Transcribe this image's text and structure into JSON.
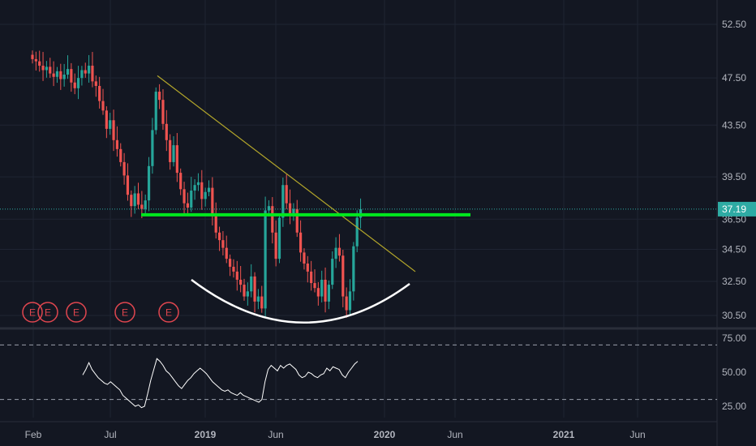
{
  "chart_data": {
    "type": "candlestick",
    "price_axis": {
      "ticks": [
        "52.50",
        "47.50",
        "43.50",
        "39.50",
        "36.50",
        "34.50",
        "32.50",
        "30.50"
      ],
      "tick_values": [
        52.5,
        47.5,
        43.5,
        39.5,
        36.5,
        34.5,
        32.5,
        30.5
      ],
      "last_price": "37.19",
      "last_price_value": 37.19,
      "scale": "log"
    },
    "rsi_axis": {
      "ticks": [
        "75.00",
        "50.00",
        "25.00"
      ],
      "tick_values": [
        75,
        50,
        25
      ],
      "ylim": [
        15,
        85
      ],
      "bands": [
        70,
        30
      ]
    },
    "time_axis": {
      "labels": [
        {
          "text": "Feb",
          "bold": false
        },
        {
          "text": "Jul",
          "bold": false
        },
        {
          "text": "2019",
          "bold": true
        },
        {
          "text": "Jun",
          "bold": false
        },
        {
          "text": "2020",
          "bold": true
        },
        {
          "text": "Jun",
          "bold": false
        },
        {
          "text": "2021",
          "bold": true
        },
        {
          "text": "Jun",
          "bold": false
        }
      ]
    },
    "closes": [
      49.2,
      49.0,
      48.6,
      48.2,
      48.5,
      47.9,
      47.6,
      48.1,
      47.4,
      47.8,
      48.3,
      47.1,
      46.6,
      47.5,
      48.2,
      47.9,
      48.6,
      47.2,
      46.8,
      45.5,
      44.7,
      43.2,
      43.9,
      42.3,
      41.6,
      40.6,
      39.6,
      38.2,
      37.4,
      38.3,
      37.5,
      37.2,
      37.8,
      40.3,
      43.1,
      46.3,
      45.6,
      43.6,
      42.3,
      40.6,
      41.9,
      39.8,
      38.6,
      37.6,
      37.3,
      38.5,
      38.9,
      39.1,
      37.9,
      38.4,
      38.7,
      36.7,
      35.6,
      35.1,
      34.6,
      33.9,
      33.4,
      33.1,
      32.6,
      32.3,
      31.6,
      31.9,
      32.8,
      31.3,
      31.6,
      30.9,
      37.1,
      37.4,
      35.6,
      33.9,
      36.6,
      38.9,
      37.6,
      36.9,
      37.2,
      35.6,
      34.3,
      33.6,
      33.1,
      32.4,
      32.1,
      31.6,
      32.6,
      31.3,
      32.3,
      33.9,
      34.6,
      34.1,
      31.6,
      30.8,
      31.9,
      34.7,
      36.6,
      37.19
    ],
    "earnings_markers": [
      "E",
      "E",
      "E",
      "E",
      "E"
    ],
    "rsi_values": [
      48,
      52,
      57,
      52,
      49,
      46,
      44,
      42,
      41,
      43,
      41,
      39,
      37,
      33,
      31,
      29,
      27,
      25,
      26,
      24,
      25,
      34,
      44,
      52,
      60,
      58,
      55,
      51,
      49,
      46,
      43,
      40,
      38,
      41,
      44,
      46,
      49,
      51,
      53,
      51,
      49,
      46,
      43,
      41,
      39,
      37,
      36,
      37,
      35,
      34,
      33,
      35,
      33,
      32,
      31,
      30,
      29,
      28,
      30,
      43,
      52,
      55,
      53,
      51,
      55,
      53,
      55,
      56,
      54,
      52,
      48,
      46,
      47,
      50,
      49,
      47,
      46,
      48,
      49,
      53,
      51,
      54,
      53,
      52,
      48,
      46,
      50,
      53,
      56,
      58
    ],
    "annotations": {
      "support_level": 36.8,
      "trendline": [
        [
          47.7,
          0
        ],
        [
          33.1,
          1
        ]
      ],
      "arc": "cup"
    },
    "grid": true,
    "colors": {
      "background": "#131722",
      "up": "#26a69a",
      "down": "#ef5350",
      "grid": "#1f2433",
      "support": "#00e81e",
      "trendline": "#b3a62a",
      "arc": "#ffffff",
      "price_tag": "#2eaba4",
      "rsi_line": "#ffffff",
      "earnings": "#e0464f",
      "axis_text": "#b2b5be"
    }
  }
}
